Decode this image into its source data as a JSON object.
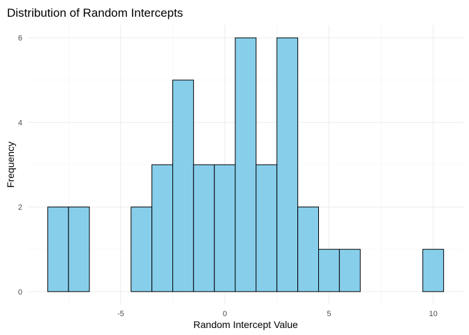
{
  "chart_data": {
    "type": "bar",
    "title": "Distribution of Random Intercepts",
    "xlabel": "Random Intercept Value",
    "ylabel": "Frequency",
    "bins": [
      {
        "x0": -8.5,
        "x1": -7.5,
        "count": 2
      },
      {
        "x0": -7.5,
        "x1": -6.5,
        "count": 2
      },
      {
        "x0": -6.5,
        "x1": -5.5,
        "count": 0
      },
      {
        "x0": -5.5,
        "x1": -4.5,
        "count": 0
      },
      {
        "x0": -4.5,
        "x1": -3.5,
        "count": 2
      },
      {
        "x0": -3.5,
        "x1": -2.5,
        "count": 3
      },
      {
        "x0": -2.5,
        "x1": -1.5,
        "count": 5
      },
      {
        "x0": -1.5,
        "x1": -0.5,
        "count": 3
      },
      {
        "x0": -0.5,
        "x1": 0.5,
        "count": 3
      },
      {
        "x0": 0.5,
        "x1": 1.5,
        "count": 6
      },
      {
        "x0": 1.5,
        "x1": 2.5,
        "count": 3
      },
      {
        "x0": 2.5,
        "x1": 3.5,
        "count": 6
      },
      {
        "x0": 3.5,
        "x1": 4.5,
        "count": 2
      },
      {
        "x0": 4.5,
        "x1": 5.5,
        "count": 1
      },
      {
        "x0": 5.5,
        "x1": 6.5,
        "count": 1
      },
      {
        "x0": 6.5,
        "x1": 7.5,
        "count": 0
      },
      {
        "x0": 7.5,
        "x1": 8.5,
        "count": 0
      },
      {
        "x0": 8.5,
        "x1": 9.5,
        "count": 0
      },
      {
        "x0": 9.5,
        "x1": 10.5,
        "count": 1
      }
    ],
    "xticks": [
      -5,
      0,
      5,
      10
    ],
    "yticks": [
      0,
      2,
      4,
      6
    ],
    "xlim": [
      -9.45,
      11.45
    ],
    "ylim": [
      -0.3,
      6.3
    ],
    "bar_fill": "#87CEEB",
    "bar_stroke": "#000000",
    "grid": true,
    "legend": "none"
  }
}
